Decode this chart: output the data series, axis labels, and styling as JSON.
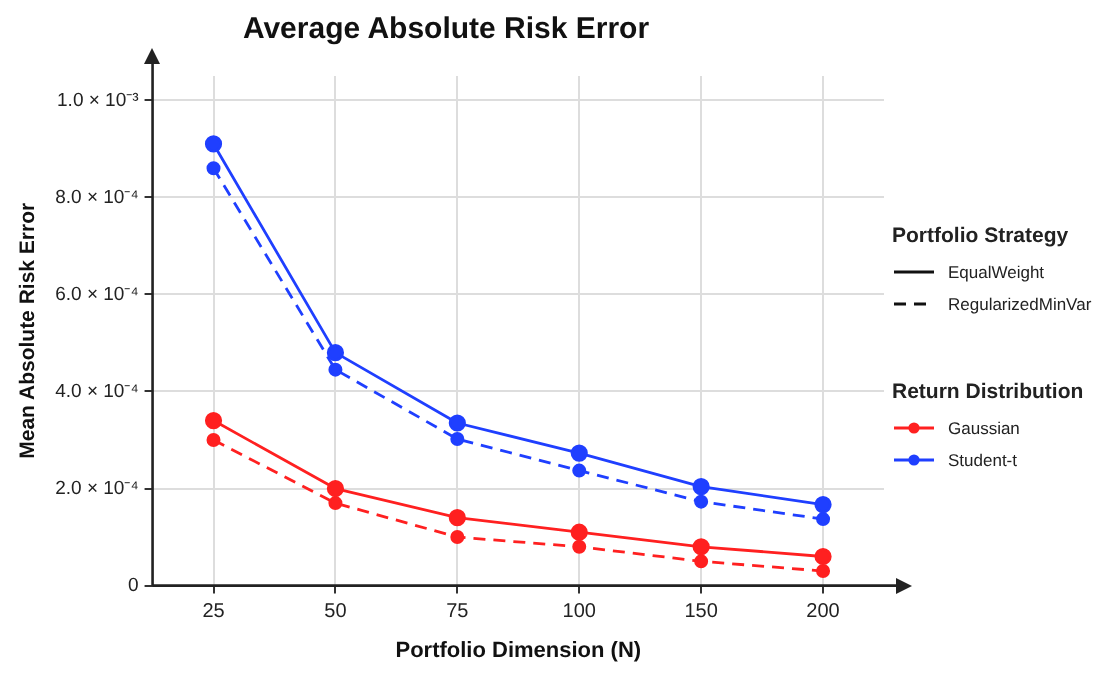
{
  "chart_data": {
    "type": "line",
    "title": "Average Absolute Risk Error",
    "xlabel": "Portfolio Dimension (N)",
    "ylabel": "Mean Absolute Risk Error",
    "categories": [
      "25",
      "50",
      "75",
      "100",
      "150",
      "200"
    ],
    "series": [
      {
        "color": "#1f3fff",
        "line_style": "solid",
        "values": [
          0.00091,
          0.00048,
          0.000335,
          0.000273,
          0.000204,
          0.000167
        ]
      },
      {
        "color": "#1f3fff",
        "line_style": "dashed",
        "values": [
          0.00086,
          0.000445,
          0.000302,
          0.000237,
          0.000173,
          0.000137
        ]
      },
      {
        "color": "#ff2020",
        "line_style": "solid",
        "values": [
          0.00034,
          0.0002,
          0.00014,
          0.00011,
          8e-05,
          6e-05
        ]
      },
      {
        "color": "#ff2020",
        "line_style": "dashed",
        "values": [
          0.0003,
          0.00017,
          0.0001,
          8e-05,
          5e-05,
          3e-05
        ]
      }
    ],
    "ylim": [
      0,
      0.00105
    ],
    "yticks": [
      {
        "value": 0,
        "label": "0"
      },
      {
        "value": 0.0002,
        "label": "2.0 × 10⁻⁴"
      },
      {
        "value": 0.0004,
        "label": "4.0 × 10⁻⁴"
      },
      {
        "value": 0.0006,
        "label": "6.0 × 10⁻⁴"
      },
      {
        "value": 0.0008,
        "label": "8.0 × 10⁻⁴"
      },
      {
        "value": 0.001,
        "label": "1.0 × 10⁻³"
      }
    ],
    "grid": true,
    "marker": "circle",
    "annotations": [
      "Portfolio Strategy",
      "EqualWeight",
      "RegularizedMinVar",
      "Return Distribution",
      "Gaussian",
      "Student-t"
    ]
  }
}
